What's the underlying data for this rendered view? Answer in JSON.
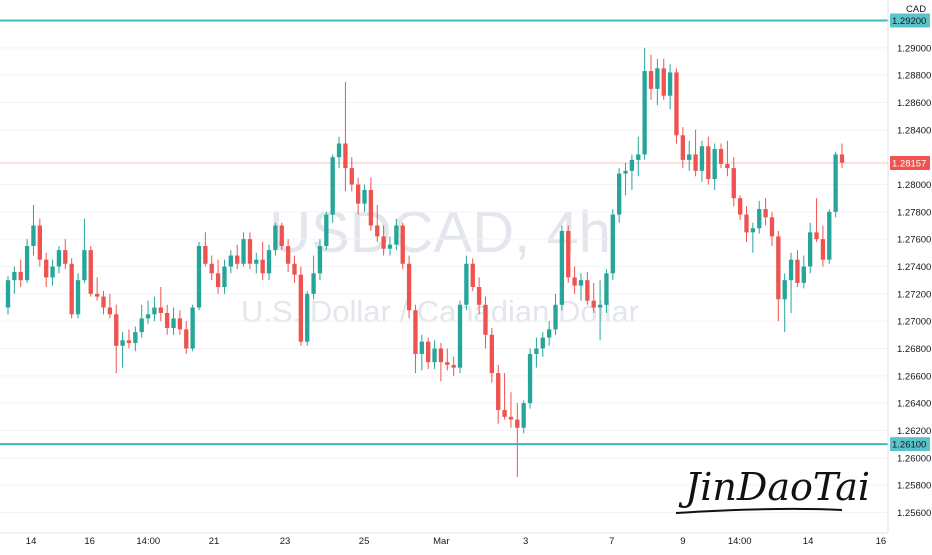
{
  "currency": "CAD",
  "watermark": {
    "symbol": "USDCAD, 4h",
    "description": "U.S. Dollar / Canadian Dollar"
  },
  "signature": "JinDaoTai",
  "colors": {
    "up": "#26a69a",
    "down": "#ef5350",
    "level_line": "#3fb8bd",
    "last_price": "#ef5350",
    "level_label_bg": "#5ac3c8"
  },
  "chart_data": {
    "type": "candlestick",
    "symbol": "USDCAD",
    "interval": "4h",
    "y_axis_ticks": [
      "1.29000",
      "1.28800",
      "1.28600",
      "1.28400",
      "1.28000",
      "1.27800",
      "1.27600",
      "1.27400",
      "1.27200",
      "1.27000",
      "1.26800",
      "1.26600",
      "1.26400",
      "1.26200",
      "1.26000",
      "1.25800",
      "1.25600"
    ],
    "ylim": [
      1.2545,
      1.2935
    ],
    "x_axis_ticks": [
      "14",
      "16",
      "14:00",
      "21",
      "23",
      "25",
      "Mar",
      "3",
      "7",
      "9",
      "14:00",
      "14",
      "16"
    ],
    "horizontal_levels": [
      {
        "value": 1.292,
        "label": "1.29200"
      },
      {
        "value": 1.261,
        "label": "1.26100"
      }
    ],
    "last_price": {
      "value": 1.28157,
      "label": "1.28157"
    },
    "candles": [
      [
        1.271,
        1.2733,
        1.2705,
        1.273
      ],
      [
        1.273,
        1.274,
        1.272,
        1.2736
      ],
      [
        1.2736,
        1.2745,
        1.2725,
        1.273
      ],
      [
        1.273,
        1.276,
        1.2728,
        1.2755
      ],
      [
        1.2755,
        1.2785,
        1.2748,
        1.277
      ],
      [
        1.277,
        1.2775,
        1.274,
        1.2745
      ],
      [
        1.2745,
        1.275,
        1.2725,
        1.2732
      ],
      [
        1.2732,
        1.2745,
        1.2726,
        1.274
      ],
      [
        1.274,
        1.2755,
        1.2735,
        1.2752
      ],
      [
        1.2752,
        1.276,
        1.2738,
        1.2742
      ],
      [
        1.2742,
        1.2746,
        1.2702,
        1.2705
      ],
      [
        1.2705,
        1.2735,
        1.2702,
        1.273
      ],
      [
        1.273,
        1.2775,
        1.2728,
        1.2752
      ],
      [
        1.2752,
        1.2755,
        1.2718,
        1.272
      ],
      [
        1.272,
        1.2732,
        1.2715,
        1.2718
      ],
      [
        1.2718,
        1.2722,
        1.2705,
        1.271
      ],
      [
        1.271,
        1.272,
        1.2702,
        1.2705
      ],
      [
        1.2705,
        1.2712,
        1.2662,
        1.2682
      ],
      [
        1.2682,
        1.2692,
        1.2666,
        1.2686
      ],
      [
        1.2686,
        1.2694,
        1.268,
        1.2684
      ],
      [
        1.2684,
        1.2696,
        1.2678,
        1.2692
      ],
      [
        1.2692,
        1.2712,
        1.2688,
        1.2702
      ],
      [
        1.2702,
        1.2715,
        1.2698,
        1.2705
      ],
      [
        1.2705,
        1.2718,
        1.27,
        1.271
      ],
      [
        1.271,
        1.2725,
        1.27,
        1.2706
      ],
      [
        1.2706,
        1.2712,
        1.269,
        1.2695
      ],
      [
        1.2695,
        1.271,
        1.269,
        1.2702
      ],
      [
        1.2702,
        1.2708,
        1.269,
        1.2694
      ],
      [
        1.2694,
        1.27,
        1.2676,
        1.268
      ],
      [
        1.268,
        1.2712,
        1.2678,
        1.271
      ],
      [
        1.271,
        1.2758,
        1.2708,
        1.2755
      ],
      [
        1.2755,
        1.2765,
        1.274,
        1.2742
      ],
      [
        1.2742,
        1.2748,
        1.273,
        1.2735
      ],
      [
        1.2735,
        1.2745,
        1.272,
        1.2725
      ],
      [
        1.2725,
        1.2745,
        1.272,
        1.274
      ],
      [
        1.274,
        1.2752,
        1.2735,
        1.2748
      ],
      [
        1.2748,
        1.2756,
        1.2738,
        1.2742
      ],
      [
        1.2742,
        1.2765,
        1.274,
        1.276
      ],
      [
        1.276,
        1.2765,
        1.2738,
        1.2742
      ],
      [
        1.2742,
        1.275,
        1.2735,
        1.2745
      ],
      [
        1.2745,
        1.2758,
        1.273,
        1.2735
      ],
      [
        1.2735,
        1.2756,
        1.273,
        1.2752
      ],
      [
        1.2752,
        1.2772,
        1.2748,
        1.277
      ],
      [
        1.277,
        1.2772,
        1.2752,
        1.2755
      ],
      [
        1.2755,
        1.276,
        1.2736,
        1.2742
      ],
      [
        1.2742,
        1.2748,
        1.2728,
        1.2734
      ],
      [
        1.2734,
        1.274,
        1.2682,
        1.2685
      ],
      [
        1.2685,
        1.2722,
        1.2682,
        1.272
      ],
      [
        1.272,
        1.2748,
        1.2716,
        1.2735
      ],
      [
        1.2735,
        1.276,
        1.273,
        1.2755
      ],
      [
        1.2755,
        1.278,
        1.2752,
        1.2778
      ],
      [
        1.2778,
        1.2822,
        1.2772,
        1.282
      ],
      [
        1.282,
        1.2835,
        1.2812,
        1.283
      ],
      [
        1.283,
        1.2875,
        1.2795,
        1.2812
      ],
      [
        1.2812,
        1.282,
        1.2795,
        1.28
      ],
      [
        1.28,
        1.2805,
        1.2778,
        1.2786
      ],
      [
        1.2786,
        1.28,
        1.278,
        1.2796
      ],
      [
        1.2796,
        1.2805,
        1.2766,
        1.277
      ],
      [
        1.277,
        1.2785,
        1.2758,
        1.2762
      ],
      [
        1.2762,
        1.277,
        1.2748,
        1.2753
      ],
      [
        1.2753,
        1.2762,
        1.2748,
        1.2756
      ],
      [
        1.2756,
        1.2775,
        1.2752,
        1.277
      ],
      [
        1.277,
        1.2772,
        1.2738,
        1.2742
      ],
      [
        1.2742,
        1.2748,
        1.2702,
        1.2708
      ],
      [
        1.2708,
        1.2712,
        1.2662,
        1.2676
      ],
      [
        1.2676,
        1.269,
        1.2664,
        1.2685
      ],
      [
        1.2685,
        1.2688,
        1.2665,
        1.267
      ],
      [
        1.267,
        1.2686,
        1.2665,
        1.268
      ],
      [
        1.268,
        1.2684,
        1.2656,
        1.267
      ],
      [
        1.267,
        1.268,
        1.2664,
        1.2668
      ],
      [
        1.2668,
        1.2674,
        1.266,
        1.2666
      ],
      [
        1.2666,
        1.2715,
        1.2662,
        1.2712
      ],
      [
        1.2712,
        1.2748,
        1.2708,
        1.2742
      ],
      [
        1.2742,
        1.2746,
        1.2722,
        1.2725
      ],
      [
        1.2725,
        1.2732,
        1.2705,
        1.2712
      ],
      [
        1.2712,
        1.2718,
        1.268,
        1.269
      ],
      [
        1.269,
        1.2695,
        1.2655,
        1.2662
      ],
      [
        1.2662,
        1.2668,
        1.2625,
        1.2635
      ],
      [
        1.2635,
        1.2662,
        1.2628,
        1.263
      ],
      [
        1.263,
        1.2648,
        1.2622,
        1.2628
      ],
      [
        1.2628,
        1.264,
        1.2586,
        1.2622
      ],
      [
        1.2622,
        1.2642,
        1.2618,
        1.264
      ],
      [
        1.264,
        1.268,
        1.2636,
        1.2676
      ],
      [
        1.2676,
        1.2688,
        1.2666,
        1.268
      ],
      [
        1.268,
        1.2692,
        1.2674,
        1.2688
      ],
      [
        1.2688,
        1.27,
        1.2682,
        1.2694
      ],
      [
        1.2694,
        1.272,
        1.269,
        1.2712
      ],
      [
        1.2712,
        1.277,
        1.2708,
        1.2766
      ],
      [
        1.2766,
        1.277,
        1.2728,
        1.2732
      ],
      [
        1.2732,
        1.274,
        1.272,
        1.2726
      ],
      [
        1.2726,
        1.2735,
        1.2715,
        1.273
      ],
      [
        1.273,
        1.2736,
        1.2712,
        1.2715
      ],
      [
        1.2715,
        1.2728,
        1.2706,
        1.271
      ],
      [
        1.271,
        1.273,
        1.2686,
        1.2712
      ],
      [
        1.2712,
        1.2738,
        1.2706,
        1.2735
      ],
      [
        1.2735,
        1.2782,
        1.273,
        1.2778
      ],
      [
        1.2778,
        1.2812,
        1.2772,
        1.2808
      ],
      [
        1.2808,
        1.2816,
        1.2792,
        1.281
      ],
      [
        1.281,
        1.2822,
        1.2796,
        1.2818
      ],
      [
        1.2818,
        1.2835,
        1.2806,
        1.2822
      ],
      [
        1.2822,
        1.29,
        1.2818,
        1.2883
      ],
      [
        1.2883,
        1.2895,
        1.2862,
        1.287
      ],
      [
        1.287,
        1.2892,
        1.2858,
        1.2885
      ],
      [
        1.2885,
        1.2892,
        1.2862,
        1.2865
      ],
      [
        1.2865,
        1.2888,
        1.2855,
        1.2882
      ],
      [
        1.2882,
        1.2885,
        1.283,
        1.2836
      ],
      [
        1.2836,
        1.2842,
        1.2812,
        1.2818
      ],
      [
        1.2818,
        1.2832,
        1.281,
        1.2822
      ],
      [
        1.2822,
        1.284,
        1.2806,
        1.281
      ],
      [
        1.281,
        1.2832,
        1.2802,
        1.2828
      ],
      [
        1.2828,
        1.2835,
        1.28,
        1.2804
      ],
      [
        1.2804,
        1.283,
        1.2796,
        1.2826
      ],
      [
        1.2826,
        1.283,
        1.2812,
        1.2815
      ],
      [
        1.2815,
        1.2832,
        1.2806,
        1.2812
      ],
      [
        1.2812,
        1.282,
        1.2784,
        1.279
      ],
      [
        1.279,
        1.2792,
        1.2774,
        1.2778
      ],
      [
        1.2778,
        1.2784,
        1.2758,
        1.2765
      ],
      [
        1.2765,
        1.2772,
        1.275,
        1.2768
      ],
      [
        1.2768,
        1.2788,
        1.2764,
        1.2782
      ],
      [
        1.2782,
        1.279,
        1.277,
        1.2776
      ],
      [
        1.2776,
        1.278,
        1.2755,
        1.2762
      ],
      [
        1.2762,
        1.2766,
        1.27,
        1.2716
      ],
      [
        1.2716,
        1.2735,
        1.2692,
        1.273
      ],
      [
        1.273,
        1.275,
        1.2706,
        1.2745
      ],
      [
        1.2745,
        1.2752,
        1.2725,
        1.2728
      ],
      [
        1.2728,
        1.2748,
        1.2724,
        1.274
      ],
      [
        1.274,
        1.2772,
        1.2735,
        1.2765
      ],
      [
        1.2765,
        1.279,
        1.2758,
        1.276
      ],
      [
        1.276,
        1.277,
        1.274,
        1.2745
      ],
      [
        1.2745,
        1.2782,
        1.2742,
        1.278
      ],
      [
        1.278,
        1.2824,
        1.2776,
        1.2822
      ],
      [
        1.2822,
        1.283,
        1.2812,
        1.2816
      ]
    ]
  }
}
